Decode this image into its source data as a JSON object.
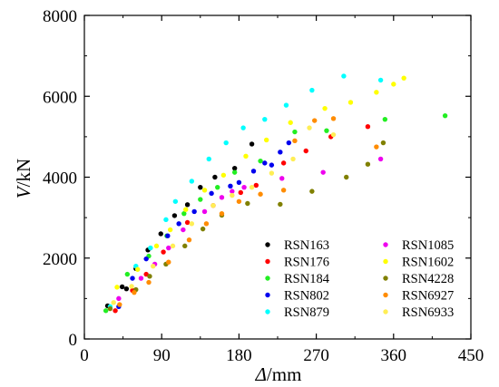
{
  "chart_data": {
    "type": "scatter",
    "title": "",
    "xlabel": {
      "symbol": "Δ",
      "unit": "/mm"
    },
    "ylabel": {
      "symbol": "V",
      "unit": "/kN"
    },
    "xlim": [
      0,
      450
    ],
    "ylim": [
      0,
      8000
    ],
    "xticks": [
      0,
      90,
      180,
      270,
      360,
      450
    ],
    "yticks": [
      0,
      2000,
      4000,
      6000,
      8000
    ],
    "grid": false,
    "legend_position": "bottom-right",
    "series": [
      {
        "name": "RSN163",
        "color": "#000000",
        "x": [
          27,
          44,
          49,
          60,
          74,
          89,
          105,
          120,
          135,
          152,
          175,
          195
        ],
        "y": [
          820,
          1290,
          1240,
          1740,
          2200,
          2600,
          3050,
          3320,
          3750,
          4000,
          4220,
          4820
        ]
      },
      {
        "name": "RSN176",
        "color": "#ff0000",
        "x": [
          36,
          56,
          72,
          92,
          120,
          150,
          182,
          200,
          232,
          258,
          287,
          330
        ],
        "y": [
          700,
          1200,
          1600,
          2150,
          2880,
          3300,
          3620,
          3800,
          4350,
          4650,
          5000,
          5250
        ]
      },
      {
        "name": "RSN184",
        "color": "#22ee22",
        "x": [
          25,
          50,
          75,
          96,
          116,
          135,
          155,
          175,
          205,
          245,
          282,
          350,
          420
        ],
        "y": [
          700,
          1600,
          2050,
          2550,
          3100,
          3450,
          3750,
          4120,
          4400,
          5120,
          5150,
          5430,
          5520
        ]
      },
      {
        "name": "RSN802",
        "color": "#0000ee",
        "x": [
          40,
          56,
          72,
          97,
          110,
          128,
          148,
          170,
          180,
          197,
          210,
          218,
          228,
          238
        ],
        "y": [
          800,
          1500,
          1980,
          2550,
          2850,
          3150,
          3600,
          3780,
          3870,
          4150,
          4350,
          4300,
          4620,
          4850
        ]
      },
      {
        "name": "RSN879",
        "color": "#00ffff",
        "x": [
          30,
          60,
          77,
          95,
          106,
          125,
          145,
          165,
          185,
          210,
          235,
          265,
          302,
          345
        ],
        "y": [
          800,
          1800,
          2250,
          2950,
          3400,
          3900,
          4450,
          4850,
          5220,
          5430,
          5780,
          6150,
          6500,
          6400
        ]
      },
      {
        "name": "RSN1085",
        "color": "#ee00ee",
        "x": [
          40,
          66,
          82,
          98,
          115,
          140,
          160,
          172,
          186,
          230,
          278,
          345
        ],
        "y": [
          1000,
          1500,
          1850,
          2250,
          2700,
          3150,
          3500,
          3650,
          3750,
          3970,
          4120,
          4450
        ]
      },
      {
        "name": "RSN1602",
        "color": "#ffff00",
        "x": [
          38,
          62,
          84,
          100,
          118,
          140,
          162,
          188,
          212,
          240,
          280,
          310,
          340,
          360,
          372
        ],
        "y": [
          1280,
          1720,
          2300,
          2700,
          3200,
          3680,
          4050,
          4520,
          4920,
          5350,
          5700,
          5850,
          6100,
          6300,
          6450
        ]
      },
      {
        "name": "RSN4228",
        "color": "#808000",
        "x": [
          30,
          60,
          76,
          95,
          117,
          138,
          160,
          190,
          228,
          265,
          305,
          330,
          348
        ],
        "y": [
          750,
          1220,
          1550,
          1850,
          2300,
          2720,
          3060,
          3350,
          3330,
          3650,
          4000,
          4320,
          4850
        ]
      },
      {
        "name": "RSN6927",
        "color": "#ff8c00",
        "x": [
          41,
          58,
          75,
          98,
          122,
          142,
          160,
          180,
          205,
          232,
          245,
          268,
          290,
          340
        ],
        "y": [
          850,
          1150,
          1400,
          1900,
          2450,
          2850,
          3100,
          3400,
          3580,
          3680,
          4900,
          5400,
          5450,
          4750
        ]
      },
      {
        "name": "RSN6933",
        "color": "#ffee55",
        "x": [
          34,
          55,
          80,
          103,
          125,
          150,
          172,
          195,
          218,
          243,
          262,
          290
        ],
        "y": [
          900,
          1300,
          1800,
          2300,
          2850,
          3300,
          3550,
          3750,
          4100,
          4450,
          5220,
          5050
        ]
      }
    ]
  }
}
